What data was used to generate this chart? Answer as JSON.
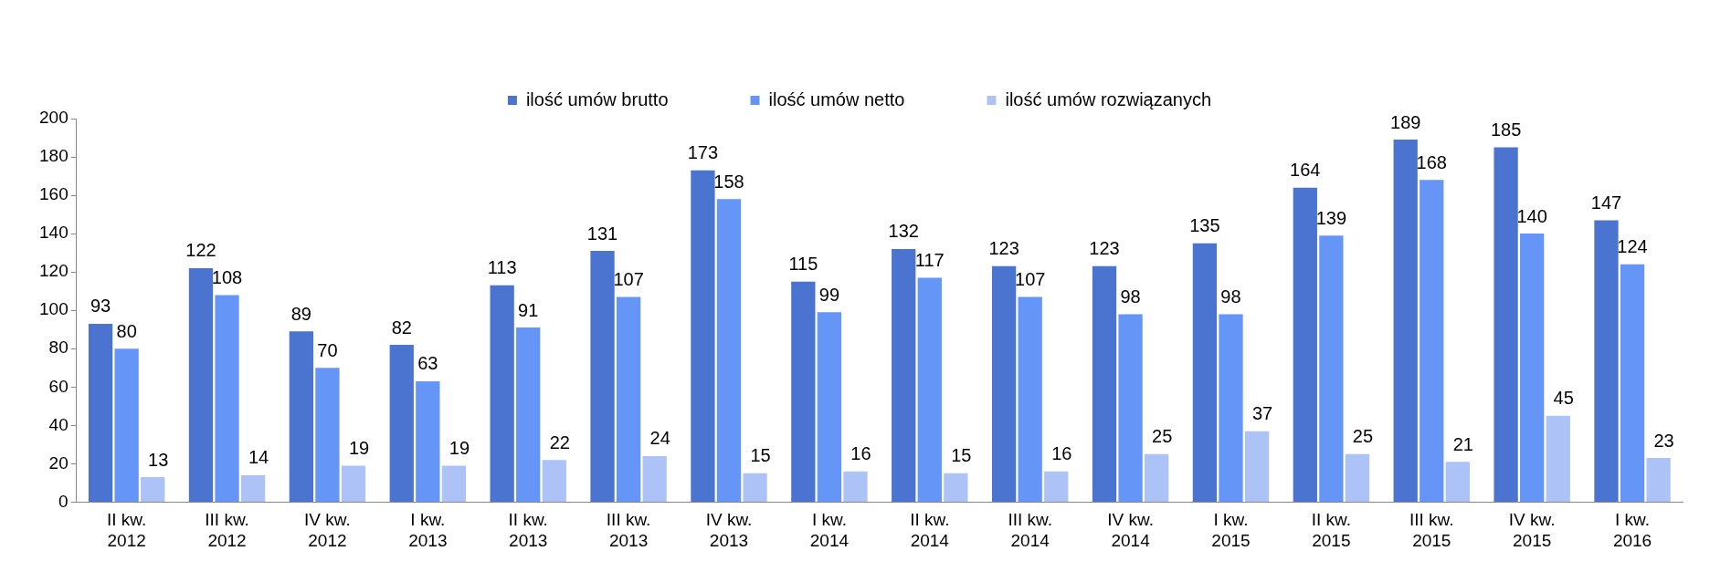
{
  "chart_data": {
    "type": "bar",
    "categories": [
      "II kw. 2012",
      "III kw. 2012",
      "IV kw. 2012",
      "I kw. 2013",
      "II kw. 2013",
      "III kw. 2013",
      "IV kw. 2013",
      "I kw. 2014",
      "II kw. 2014",
      "III kw. 2014",
      "IV kw. 2014",
      "I kw. 2015",
      "II kw. 2015",
      "III kw. 2015",
      "IV kw. 2015",
      "I kw. 2016"
    ],
    "series": [
      {
        "name": "ilość umów brutto",
        "color": "#4a74d0",
        "values": [
          93,
          122,
          89,
          82,
          113,
          131,
          173,
          115,
          132,
          123,
          123,
          135,
          164,
          189,
          185,
          147
        ]
      },
      {
        "name": "ilość umów netto",
        "color": "#6595f7",
        "values": [
          80,
          108,
          70,
          63,
          91,
          107,
          158,
          99,
          117,
          107,
          98,
          98,
          139,
          168,
          140,
          124
        ]
      },
      {
        "name": "ilość umów rozwiązanych",
        "color": "#adc3f7",
        "values": [
          13,
          14,
          19,
          19,
          22,
          24,
          15,
          16,
          15,
          16,
          25,
          37,
          25,
          21,
          45,
          23
        ]
      }
    ],
    "ylim": [
      0,
      200
    ],
    "yticks": [
      0,
      20,
      40,
      60,
      80,
      100,
      120,
      140,
      160,
      180,
      200
    ],
    "grid": false,
    "legend": "top",
    "data_labels": true
  }
}
